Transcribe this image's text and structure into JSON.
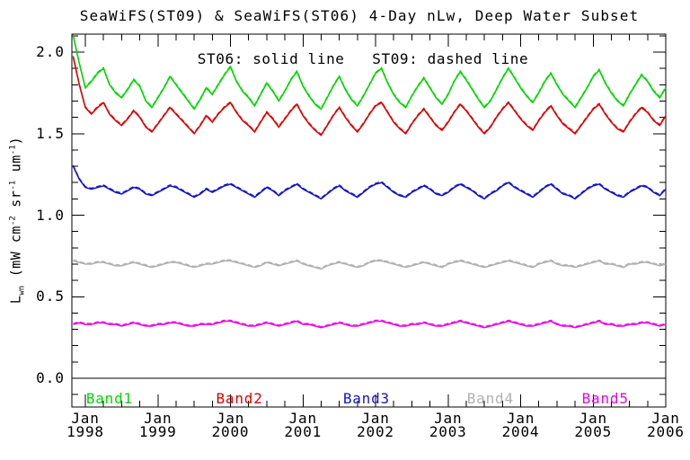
{
  "chart_data": {
    "type": "line",
    "title": "SeaWiFS(ST09) & SeaWiFS(ST06) 4-Day nLw, Deep Water Subset",
    "annotation": "ST06: solid line   ST09: dashed line",
    "ylabel": "Lwn (mW cm-2 sr-1 um-1)",
    "ylabel_parts": {
      "base": "L",
      "sub": "wn",
      "mid1": " (mW cm",
      "sup1": "-2",
      "mid2": " sr",
      "sup2": "-1",
      "mid3": " um",
      "sup3": "-1",
      "end": ")"
    },
    "grid": false,
    "frame": "box-with-inward-ticks",
    "ylim": [
      -0.18,
      2.11
    ],
    "y_minor_step": 0.1,
    "yticks": [
      {
        "label": "0.0",
        "value": 0.0
      },
      {
        "label": "0.5",
        "value": 0.5
      },
      {
        "label": "1.0",
        "value": 1.0
      },
      {
        "label": "1.5",
        "value": 1.5
      },
      {
        "label": "2.0",
        "value": 2.0
      }
    ],
    "x_range_months": [
      -2,
      96
    ],
    "x_minor_step_months": 3,
    "xticks": [
      {
        "month": "Jan",
        "year": "1998",
        "month_index": 0
      },
      {
        "month": "Jan",
        "year": "1999",
        "month_index": 12
      },
      {
        "month": "Jan",
        "year": "2000",
        "month_index": 24
      },
      {
        "month": "Jan",
        "year": "2001",
        "month_index": 36
      },
      {
        "month": "Jan",
        "year": "2002",
        "month_index": 48
      },
      {
        "month": "Jan",
        "year": "2003",
        "month_index": 60
      },
      {
        "month": "Jan",
        "year": "2004",
        "month_index": 72
      },
      {
        "month": "Jan",
        "year": "2005",
        "month_index": 84
      },
      {
        "month": "Jan",
        "year": "2006",
        "month_index": 96
      }
    ],
    "line_styles": {
      "ST06": "solid",
      "ST09": "dashed"
    },
    "zero_line": 0.0,
    "series": [
      {
        "name": "Band1",
        "color": "#00d800",
        "x_start_month": -2,
        "x_step_months": 1,
        "values": [
          2.1,
          1.93,
          1.78,
          1.82,
          1.87,
          1.9,
          1.8,
          1.75,
          1.72,
          1.77,
          1.83,
          1.79,
          1.7,
          1.66,
          1.72,
          1.78,
          1.85,
          1.8,
          1.75,
          1.7,
          1.65,
          1.71,
          1.78,
          1.74,
          1.8,
          1.86,
          1.91,
          1.82,
          1.76,
          1.72,
          1.67,
          1.74,
          1.81,
          1.76,
          1.7,
          1.76,
          1.83,
          1.88,
          1.79,
          1.73,
          1.68,
          1.65,
          1.72,
          1.79,
          1.85,
          1.77,
          1.71,
          1.67,
          1.73,
          1.8,
          1.87,
          1.9,
          1.81,
          1.74,
          1.69,
          1.66,
          1.73,
          1.79,
          1.84,
          1.78,
          1.72,
          1.68,
          1.74,
          1.82,
          1.88,
          1.83,
          1.77,
          1.71,
          1.66,
          1.7,
          1.77,
          1.84,
          1.9,
          1.84,
          1.78,
          1.73,
          1.69,
          1.75,
          1.82,
          1.87,
          1.8,
          1.74,
          1.7,
          1.66,
          1.72,
          1.78,
          1.85,
          1.89,
          1.81,
          1.75,
          1.7,
          1.67,
          1.74,
          1.8,
          1.86,
          1.82,
          1.76,
          1.72,
          1.78
        ]
      },
      {
        "name": "Band2",
        "color": "#dd0000",
        "x_start_month": -2,
        "x_step_months": 1,
        "values": [
          1.97,
          1.8,
          1.66,
          1.62,
          1.66,
          1.69,
          1.62,
          1.58,
          1.55,
          1.59,
          1.64,
          1.6,
          1.54,
          1.51,
          1.56,
          1.61,
          1.66,
          1.62,
          1.58,
          1.54,
          1.5,
          1.55,
          1.61,
          1.57,
          1.62,
          1.66,
          1.69,
          1.63,
          1.58,
          1.55,
          1.51,
          1.57,
          1.63,
          1.59,
          1.54,
          1.59,
          1.64,
          1.68,
          1.61,
          1.56,
          1.52,
          1.49,
          1.55,
          1.61,
          1.66,
          1.6,
          1.55,
          1.51,
          1.56,
          1.62,
          1.67,
          1.69,
          1.63,
          1.57,
          1.53,
          1.5,
          1.56,
          1.61,
          1.65,
          1.6,
          1.55,
          1.52,
          1.57,
          1.63,
          1.68,
          1.64,
          1.59,
          1.54,
          1.5,
          1.54,
          1.6,
          1.65,
          1.69,
          1.64,
          1.59,
          1.55,
          1.52,
          1.58,
          1.63,
          1.67,
          1.61,
          1.56,
          1.53,
          1.5,
          1.55,
          1.6,
          1.65,
          1.68,
          1.62,
          1.57,
          1.53,
          1.51,
          1.57,
          1.62,
          1.66,
          1.63,
          1.58,
          1.55,
          1.61
        ]
      },
      {
        "name": "Band3",
        "color": "#1414cc",
        "x_start_month": -2,
        "x_step_months": 1,
        "values": [
          1.3,
          1.22,
          1.17,
          1.16,
          1.17,
          1.18,
          1.16,
          1.14,
          1.13,
          1.15,
          1.17,
          1.16,
          1.13,
          1.12,
          1.14,
          1.16,
          1.18,
          1.17,
          1.15,
          1.13,
          1.11,
          1.13,
          1.16,
          1.14,
          1.16,
          1.18,
          1.19,
          1.17,
          1.15,
          1.13,
          1.11,
          1.14,
          1.17,
          1.15,
          1.12,
          1.15,
          1.17,
          1.19,
          1.16,
          1.14,
          1.12,
          1.1,
          1.13,
          1.16,
          1.18,
          1.15,
          1.13,
          1.11,
          1.14,
          1.17,
          1.19,
          1.2,
          1.17,
          1.14,
          1.12,
          1.11,
          1.14,
          1.16,
          1.18,
          1.16,
          1.13,
          1.12,
          1.14,
          1.17,
          1.19,
          1.17,
          1.15,
          1.12,
          1.1,
          1.13,
          1.15,
          1.18,
          1.2,
          1.17,
          1.15,
          1.13,
          1.11,
          1.14,
          1.17,
          1.19,
          1.16,
          1.13,
          1.12,
          1.1,
          1.13,
          1.16,
          1.18,
          1.19,
          1.16,
          1.14,
          1.12,
          1.11,
          1.14,
          1.16,
          1.18,
          1.17,
          1.14,
          1.12,
          1.16
        ]
      },
      {
        "name": "Band4",
        "color": "#b0b0b0",
        "x_start_month": -2,
        "x_step_months": 1,
        "values": [
          0.72,
          0.71,
          0.7,
          0.7,
          0.71,
          0.71,
          0.7,
          0.69,
          0.69,
          0.7,
          0.71,
          0.7,
          0.69,
          0.68,
          0.69,
          0.7,
          0.71,
          0.71,
          0.7,
          0.69,
          0.68,
          0.69,
          0.7,
          0.7,
          0.71,
          0.72,
          0.72,
          0.71,
          0.7,
          0.69,
          0.68,
          0.69,
          0.71,
          0.7,
          0.69,
          0.7,
          0.71,
          0.72,
          0.7,
          0.69,
          0.68,
          0.67,
          0.69,
          0.7,
          0.71,
          0.7,
          0.69,
          0.68,
          0.69,
          0.71,
          0.72,
          0.72,
          0.71,
          0.7,
          0.69,
          0.68,
          0.69,
          0.7,
          0.71,
          0.7,
          0.69,
          0.68,
          0.7,
          0.71,
          0.72,
          0.71,
          0.7,
          0.69,
          0.68,
          0.69,
          0.7,
          0.71,
          0.72,
          0.71,
          0.7,
          0.69,
          0.68,
          0.7,
          0.71,
          0.72,
          0.7,
          0.69,
          0.69,
          0.68,
          0.69,
          0.7,
          0.71,
          0.72,
          0.7,
          0.7,
          0.69,
          0.68,
          0.7,
          0.7,
          0.71,
          0.71,
          0.7,
          0.69,
          0.7
        ]
      },
      {
        "name": "Band5",
        "color": "#ee00ee",
        "x_start_month": -2,
        "x_step_months": 1,
        "values": [
          0.33,
          0.34,
          0.33,
          0.33,
          0.34,
          0.34,
          0.33,
          0.33,
          0.32,
          0.33,
          0.34,
          0.33,
          0.32,
          0.32,
          0.33,
          0.33,
          0.34,
          0.34,
          0.33,
          0.32,
          0.32,
          0.33,
          0.33,
          0.33,
          0.34,
          0.35,
          0.35,
          0.34,
          0.33,
          0.32,
          0.32,
          0.33,
          0.34,
          0.33,
          0.32,
          0.33,
          0.34,
          0.35,
          0.33,
          0.33,
          0.32,
          0.31,
          0.32,
          0.33,
          0.34,
          0.33,
          0.32,
          0.32,
          0.33,
          0.34,
          0.35,
          0.35,
          0.34,
          0.33,
          0.32,
          0.32,
          0.33,
          0.33,
          0.34,
          0.33,
          0.32,
          0.32,
          0.33,
          0.34,
          0.35,
          0.34,
          0.33,
          0.32,
          0.31,
          0.32,
          0.33,
          0.34,
          0.35,
          0.34,
          0.33,
          0.32,
          0.32,
          0.33,
          0.34,
          0.35,
          0.33,
          0.32,
          0.32,
          0.31,
          0.32,
          0.33,
          0.34,
          0.35,
          0.33,
          0.33,
          0.32,
          0.32,
          0.33,
          0.33,
          0.34,
          0.34,
          0.33,
          0.32,
          0.33
        ]
      }
    ],
    "band_labels": [
      {
        "label": "Band1",
        "color": "#00d800",
        "month_center": 4.0
      },
      {
        "label": "Band2",
        "color": "#dd0000",
        "month_center": 25.5
      },
      {
        "label": "Band3",
        "color": "#1414cc",
        "month_center": 46.5
      },
      {
        "label": "Band4",
        "color": "#b0b0b0",
        "month_center": 67.0
      },
      {
        "label": "Band5",
        "color": "#ee00ee",
        "month_center": 86.0
      }
    ]
  }
}
